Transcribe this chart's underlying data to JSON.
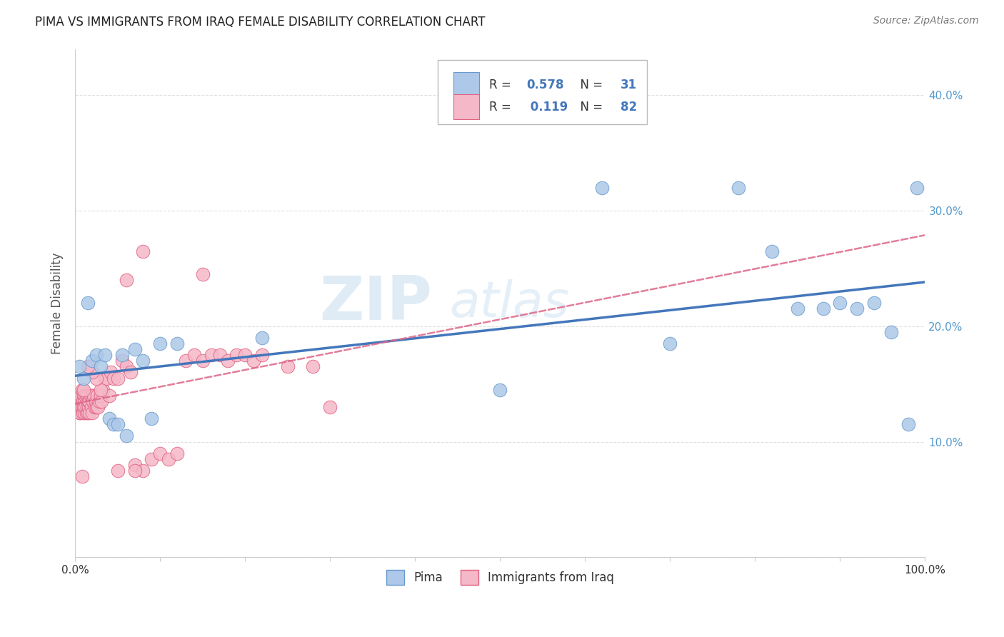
{
  "title": "PIMA VS IMMIGRANTS FROM IRAQ FEMALE DISABILITY CORRELATION CHART",
  "source": "Source: ZipAtlas.com",
  "ylabel": "Female Disability",
  "xlim": [
    0.0,
    1.0
  ],
  "ylim": [
    0.0,
    0.44
  ],
  "pima_color": "#adc8e8",
  "pima_edge_color": "#6699cc",
  "iraq_color": "#f5b8c8",
  "iraq_edge_color": "#e06080",
  "pima_line_color": "#4477bb",
  "iraq_line_color": "#dd6688",
  "legend_R_pima": "0.578",
  "legend_N_pima": "31",
  "legend_R_iraq": "0.119",
  "legend_N_iraq": "82",
  "watermark_zip": "ZIP",
  "watermark_atlas": "atlas",
  "background_color": "#ffffff",
  "grid_color": "#dddddd",
  "label_color": "#5599cc",
  "pima_x": [
    0.005,
    0.01,
    0.015,
    0.02,
    0.025,
    0.03,
    0.035,
    0.04,
    0.045,
    0.05,
    0.055,
    0.06,
    0.07,
    0.08,
    0.09,
    0.1,
    0.12,
    0.22,
    0.5,
    0.62,
    0.7,
    0.78,
    0.82,
    0.85,
    0.88,
    0.9,
    0.92,
    0.94,
    0.96,
    0.98,
    0.99
  ],
  "pima_y": [
    0.165,
    0.155,
    0.22,
    0.17,
    0.175,
    0.165,
    0.175,
    0.12,
    0.115,
    0.115,
    0.175,
    0.105,
    0.18,
    0.17,
    0.12,
    0.185,
    0.185,
    0.19,
    0.145,
    0.32,
    0.185,
    0.32,
    0.265,
    0.215,
    0.215,
    0.22,
    0.215,
    0.22,
    0.195,
    0.115,
    0.32
  ],
  "iraq_x": [
    0.003,
    0.004,
    0.005,
    0.005,
    0.006,
    0.006,
    0.007,
    0.007,
    0.008,
    0.008,
    0.009,
    0.009,
    0.01,
    0.01,
    0.011,
    0.011,
    0.012,
    0.012,
    0.013,
    0.013,
    0.014,
    0.014,
    0.015,
    0.015,
    0.016,
    0.016,
    0.017,
    0.017,
    0.018,
    0.019,
    0.02,
    0.02,
    0.021,
    0.022,
    0.023,
    0.024,
    0.025,
    0.026,
    0.027,
    0.028,
    0.03,
    0.031,
    0.033,
    0.035,
    0.037,
    0.04,
    0.042,
    0.045,
    0.05,
    0.055,
    0.06,
    0.065,
    0.07,
    0.08,
    0.09,
    0.1,
    0.11,
    0.12,
    0.13,
    0.14,
    0.15,
    0.16,
    0.17,
    0.18,
    0.19,
    0.2,
    0.21,
    0.22,
    0.25,
    0.28,
    0.3,
    0.08,
    0.15,
    0.06,
    0.07,
    0.05,
    0.03,
    0.025,
    0.02,
    0.015,
    0.01,
    0.008
  ],
  "iraq_y": [
    0.135,
    0.13,
    0.125,
    0.14,
    0.14,
    0.125,
    0.14,
    0.13,
    0.13,
    0.145,
    0.135,
    0.125,
    0.14,
    0.13,
    0.135,
    0.125,
    0.14,
    0.13,
    0.125,
    0.14,
    0.135,
    0.13,
    0.125,
    0.14,
    0.13,
    0.135,
    0.125,
    0.135,
    0.14,
    0.13,
    0.14,
    0.125,
    0.135,
    0.14,
    0.13,
    0.135,
    0.13,
    0.14,
    0.13,
    0.135,
    0.14,
    0.135,
    0.145,
    0.155,
    0.155,
    0.14,
    0.16,
    0.155,
    0.155,
    0.17,
    0.165,
    0.16,
    0.08,
    0.075,
    0.085,
    0.09,
    0.085,
    0.09,
    0.17,
    0.175,
    0.17,
    0.175,
    0.175,
    0.17,
    0.175,
    0.175,
    0.17,
    0.175,
    0.165,
    0.165,
    0.13,
    0.265,
    0.245,
    0.24,
    0.075,
    0.075,
    0.145,
    0.155,
    0.16,
    0.165,
    0.145,
    0.07
  ]
}
